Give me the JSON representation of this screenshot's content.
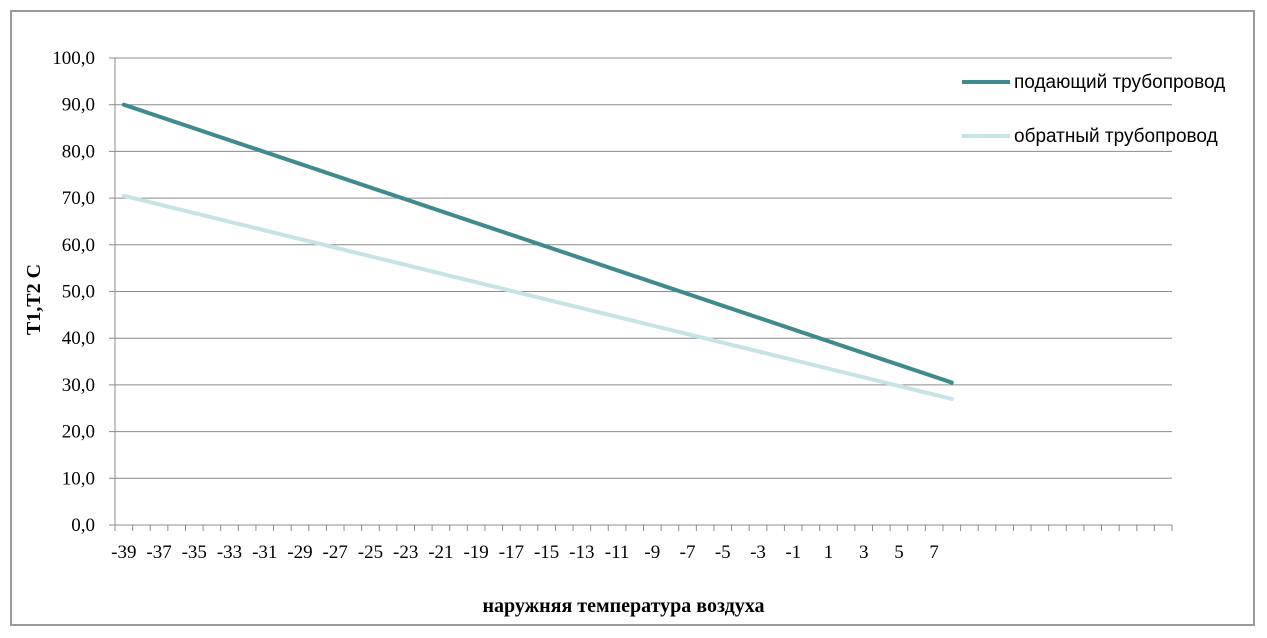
{
  "chart_data": {
    "type": "line",
    "xlabel": "наружняя температура воздуха",
    "ylabel": "T1,T2  C",
    "ylim": [
      0,
      100
    ],
    "yticks": [
      "0,0",
      "10,0",
      "20,0",
      "30,0",
      "40,0",
      "50,0",
      "60,0",
      "70,0",
      "80,0",
      "90,0",
      "100,0"
    ],
    "x_tick_labels": [
      "-39",
      "-37",
      "-35",
      "-33",
      "-31",
      "-29",
      "-27",
      "-25",
      "-23",
      "-21",
      "-19",
      "-17",
      "-15",
      "-13",
      "-11",
      "-9",
      "-7",
      "-5",
      "-3",
      "-1",
      "1",
      "3",
      "5",
      "7"
    ],
    "x_start": -39,
    "x_end": 8,
    "x_axis_max": 20,
    "grid": "horizontal",
    "legend_position": "top-right",
    "series": [
      {
        "name": "подающий трубопровод",
        "color": "#3f8a8f",
        "x": [
          -39,
          8
        ],
        "y": [
          90.0,
          30.5
        ]
      },
      {
        "name": "обратный трубопровод",
        "color": "#c6e3e7",
        "x": [
          -39,
          8
        ],
        "y": [
          70.5,
          27.0
        ]
      }
    ]
  }
}
